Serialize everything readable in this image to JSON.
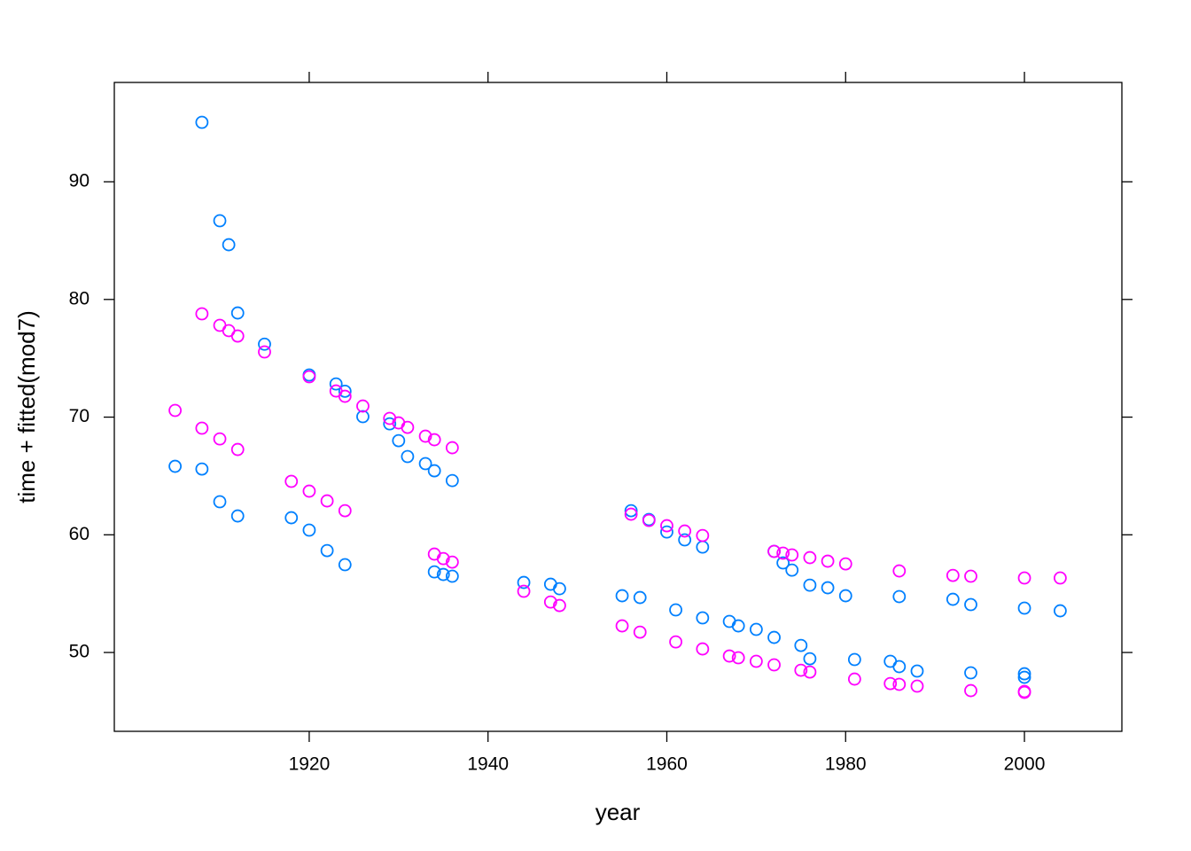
{
  "chart_data": {
    "type": "scatter",
    "x_label": "year",
    "y_label": "time + fitted(mod7)",
    "xlim": [
      1898.2,
      2010.9
    ],
    "ylim": [
      43.3,
      98.44
    ],
    "xticks": [
      1920,
      1940,
      1960,
      1980,
      2000
    ],
    "yticks": [
      50,
      60,
      70,
      80,
      90
    ],
    "series": [
      {
        "color": "#0080ff",
        "x": [
          1905,
          1908,
          1908,
          1910,
          1911,
          1910,
          1912,
          1912,
          1915,
          1918,
          1920,
          1920,
          1922,
          1923,
          1924,
          1924,
          1926,
          1929,
          1930,
          1931,
          1933,
          1934,
          1936,
          1934,
          1935,
          1936,
          1944,
          1947,
          1948,
          1955,
          1957,
          1956,
          1958,
          1960,
          1962,
          1964,
          1961,
          1964,
          1967,
          1968,
          1970,
          1972,
          1972,
          1973,
          1974,
          1975,
          1976,
          1976,
          1978,
          1980,
          1981,
          1985,
          1986,
          1986,
          1988,
          1992,
          1994,
          1994,
          2000,
          2000,
          2000,
          2004
        ],
        "values": [
          65.82,
          95.05,
          65.59,
          86.69,
          84.65,
          62.81,
          78.85,
          61.6,
          76.2,
          61.45,
          73.58,
          60.4,
          58.66,
          72.82,
          72.2,
          57.46,
          70.04,
          69.43,
          68.0,
          66.65,
          66.05,
          65.44,
          64.61,
          56.85,
          56.63,
          56.48,
          55.95,
          55.8,
          55.42,
          54.82,
          54.67,
          62.05,
          61.3,
          60.24,
          59.57,
          58.96,
          53.62,
          52.94,
          52.64,
          52.26,
          51.96,
          51.28,
          58.59,
          57.61,
          57.0,
          50.6,
          49.47,
          55.72,
          55.5,
          54.82,
          49.4,
          49.25,
          48.8,
          54.75,
          48.42,
          54.52,
          54.07,
          48.27,
          53.77,
          48.19,
          47.89,
          53.54
        ]
      },
      {
        "color": "#ff00ff",
        "x": [
          1905,
          1908,
          1908,
          1910,
          1911,
          1912,
          1910,
          1912,
          1915,
          1918,
          1920,
          1920,
          1922,
          1923,
          1924,
          1924,
          1926,
          1929,
          1930,
          1931,
          1933,
          1934,
          1936,
          1934,
          1935,
          1936,
          1944,
          1947,
          1948,
          1955,
          1957,
          1956,
          1958,
          1960,
          1962,
          1964,
          1961,
          1964,
          1967,
          1968,
          1970,
          1972,
          1972,
          1973,
          1974,
          1975,
          1976,
          1976,
          1978,
          1980,
          1981,
          1985,
          1986,
          1986,
          1988,
          1992,
          1994,
          1994,
          2000,
          2000,
          2000,
          2004
        ],
        "values": [
          70.57,
          69.06,
          78.78,
          77.8,
          77.35,
          76.89,
          68.15,
          67.25,
          75.54,
          64.54,
          73.43,
          63.71,
          62.88,
          72.22,
          71.77,
          62.05,
          70.94,
          69.89,
          69.51,
          69.13,
          68.38,
          68.08,
          67.4,
          58.36,
          57.98,
          57.68,
          55.2,
          54.29,
          53.99,
          52.26,
          51.73,
          61.75,
          61.22,
          60.77,
          60.32,
          59.94,
          50.9,
          50.3,
          49.7,
          49.55,
          49.25,
          48.95,
          58.59,
          58.44,
          58.29,
          48.49,
          48.34,
          58.06,
          57.76,
          57.53,
          47.74,
          47.36,
          47.29,
          56.93,
          47.14,
          56.55,
          56.48,
          46.76,
          56.33,
          46.69,
          46.61,
          56.33
        ]
      }
    ]
  }
}
